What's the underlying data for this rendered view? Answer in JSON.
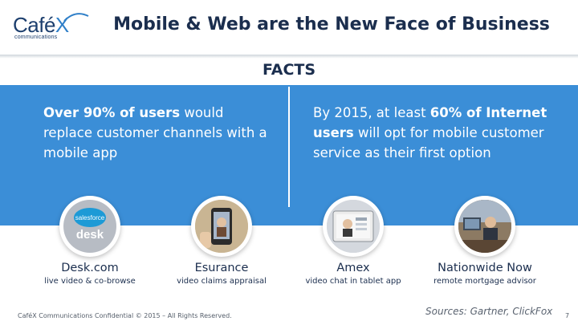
{
  "logo": {
    "word_main": "Café",
    "word_x": "X",
    "tagline": "communications"
  },
  "title": "Mobile & Web are the New Face of Business",
  "section_heading": "FACTS",
  "facts": {
    "left": {
      "bold": "Over 90% of users",
      "rest": " would replace customer channels with a mobile app"
    },
    "right": {
      "pre": "By 2015, at least ",
      "bold": "60% of Internet users",
      "rest": " will opt for mobile customer service as their first option"
    }
  },
  "cases": [
    {
      "name": "Desk.com",
      "desc": "live video & co-browse",
      "logo_top": "salesforce",
      "logo_bottom": "desk",
      "icon": "desk-logo-icon"
    },
    {
      "name": "Esurance",
      "desc": "video claims appraisal",
      "icon": "phone-video-photo"
    },
    {
      "name": "Amex",
      "desc": "video chat in tablet app",
      "icon": "tablet-video-photo"
    },
    {
      "name": "Nationwide Now",
      "desc": "remote mortgage advisor",
      "icon": "advisor-desk-photo"
    }
  ],
  "footer": {
    "confidential": "CaféX Communications Confidential © 2015 – All Rights Reserved.",
    "sources": "Sources: Gartner, ClickFox",
    "page": "7"
  },
  "colors": {
    "accent_blue": "#3b8ed7",
    "navy": "#1b2e4e",
    "logo_blue": "#2f7fc8"
  }
}
